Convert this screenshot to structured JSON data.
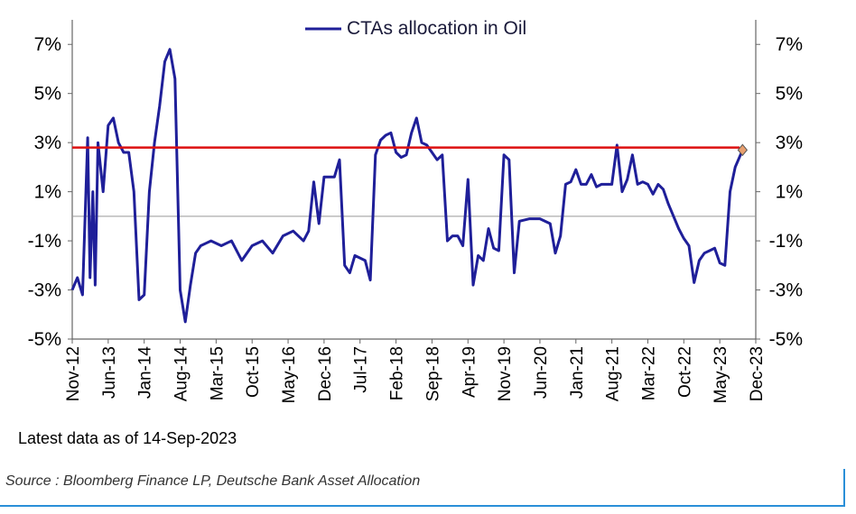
{
  "chart_data": {
    "type": "line",
    "legend": "CTAs allocation in Oil",
    "legend_position": "top-center",
    "y_ticks": [
      "7%",
      "5%",
      "3%",
      "1%",
      "-1%",
      "-3%",
      "-5%"
    ],
    "y_tick_values": [
      7,
      5,
      3,
      1,
      -1,
      -3,
      -5
    ],
    "ylim": [
      -5,
      8
    ],
    "x_ticks": [
      "Nov-12",
      "Jun-13",
      "Jan-14",
      "Aug-14",
      "Mar-15",
      "Oct-15",
      "May-16",
      "Dec-16",
      "Jul-17",
      "Feb-18",
      "Sep-18",
      "Apr-19",
      "Nov-19",
      "Jun-20",
      "Jan-21",
      "Aug-21",
      "Mar-22",
      "Oct-22",
      "May-23",
      "Dec-23"
    ],
    "xlim": [
      "2012-11",
      "2023-12"
    ],
    "grid": false,
    "zero_line": true,
    "series": [
      {
        "name": "CTAs allocation in Oil",
        "color": "#1f1f99",
        "points": [
          [
            "2012-11-01",
            -3.0
          ],
          [
            "2012-12-01",
            -2.5
          ],
          [
            "2013-01-01",
            -3.2
          ],
          [
            "2013-02-01",
            3.2
          ],
          [
            "2013-02-15",
            -2.5
          ],
          [
            "2013-03-01",
            1.0
          ],
          [
            "2013-03-15",
            -2.8
          ],
          [
            "2013-04-01",
            3.0
          ],
          [
            "2013-05-01",
            1.0
          ],
          [
            "2013-06-01",
            3.7
          ],
          [
            "2013-07-01",
            4.0
          ],
          [
            "2013-08-01",
            3.0
          ],
          [
            "2013-09-01",
            2.6
          ],
          [
            "2013-10-01",
            2.6
          ],
          [
            "2013-11-01",
            1.0
          ],
          [
            "2013-12-01",
            -3.4
          ],
          [
            "2014-01-01",
            -3.2
          ],
          [
            "2014-02-01",
            1.0
          ],
          [
            "2014-03-01",
            3.0
          ],
          [
            "2014-04-01",
            4.5
          ],
          [
            "2014-05-01",
            6.3
          ],
          [
            "2014-06-01",
            6.8
          ],
          [
            "2014-07-01",
            5.6
          ],
          [
            "2014-08-01",
            -3.0
          ],
          [
            "2014-09-01",
            -4.3
          ],
          [
            "2014-10-01",
            -2.8
          ],
          [
            "2014-11-01",
            -1.5
          ],
          [
            "2014-12-01",
            -1.2
          ],
          [
            "2015-01-01",
            -1.1
          ],
          [
            "2015-02-01",
            -1.0
          ],
          [
            "2015-04-01",
            -1.2
          ],
          [
            "2015-06-01",
            -1.0
          ],
          [
            "2015-08-01",
            -1.8
          ],
          [
            "2015-10-01",
            -1.2
          ],
          [
            "2015-12-01",
            -1.0
          ],
          [
            "2016-02-01",
            -1.5
          ],
          [
            "2016-04-01",
            -0.8
          ],
          [
            "2016-06-01",
            -0.6
          ],
          [
            "2016-08-01",
            -1.0
          ],
          [
            "2016-09-01",
            -0.6
          ],
          [
            "2016-10-01",
            1.4
          ],
          [
            "2016-11-01",
            -0.3
          ],
          [
            "2016-12-01",
            1.6
          ],
          [
            "2017-02-01",
            1.6
          ],
          [
            "2017-03-01",
            2.3
          ],
          [
            "2017-04-01",
            -2.0
          ],
          [
            "2017-05-01",
            -2.3
          ],
          [
            "2017-06-01",
            -1.6
          ],
          [
            "2017-07-01",
            -1.7
          ],
          [
            "2017-08-01",
            -1.8
          ],
          [
            "2017-09-01",
            -2.6
          ],
          [
            "2017-10-01",
            2.5
          ],
          [
            "2017-11-01",
            3.1
          ],
          [
            "2017-12-01",
            3.3
          ],
          [
            "2018-01-01",
            3.4
          ],
          [
            "2018-02-01",
            2.6
          ],
          [
            "2018-03-01",
            2.4
          ],
          [
            "2018-04-01",
            2.5
          ],
          [
            "2018-05-01",
            3.4
          ],
          [
            "2018-06-01",
            4.0
          ],
          [
            "2018-07-01",
            3.0
          ],
          [
            "2018-08-01",
            2.9
          ],
          [
            "2018-09-01",
            2.6
          ],
          [
            "2018-10-01",
            2.3
          ],
          [
            "2018-11-01",
            2.5
          ],
          [
            "2018-12-01",
            -1.0
          ],
          [
            "2019-01-01",
            -0.8
          ],
          [
            "2019-02-01",
            -0.8
          ],
          [
            "2019-03-01",
            -1.2
          ],
          [
            "2019-04-01",
            1.5
          ],
          [
            "2019-05-01",
            -2.8
          ],
          [
            "2019-06-01",
            -1.6
          ],
          [
            "2019-07-01",
            -1.8
          ],
          [
            "2019-08-01",
            -0.5
          ],
          [
            "2019-09-01",
            -1.3
          ],
          [
            "2019-10-01",
            -1.4
          ],
          [
            "2019-11-01",
            2.5
          ],
          [
            "2019-12-01",
            2.3
          ],
          [
            "2020-01-01",
            -2.3
          ],
          [
            "2020-02-01",
            -0.2
          ],
          [
            "2020-04-01",
            -0.1
          ],
          [
            "2020-06-01",
            -0.1
          ],
          [
            "2020-08-01",
            -0.3
          ],
          [
            "2020-09-01",
            -1.5
          ],
          [
            "2020-10-01",
            -0.8
          ],
          [
            "2020-11-01",
            1.3
          ],
          [
            "2020-12-01",
            1.4
          ],
          [
            "2021-01-01",
            1.9
          ],
          [
            "2021-02-01",
            1.3
          ],
          [
            "2021-03-01",
            1.3
          ],
          [
            "2021-04-01",
            1.7
          ],
          [
            "2021-05-01",
            1.2
          ],
          [
            "2021-06-01",
            1.3
          ],
          [
            "2021-07-01",
            1.3
          ],
          [
            "2021-08-01",
            1.3
          ],
          [
            "2021-09-01",
            2.9
          ],
          [
            "2021-10-01",
            1.0
          ],
          [
            "2021-11-01",
            1.5
          ],
          [
            "2021-12-01",
            2.5
          ],
          [
            "2022-01-01",
            1.3
          ],
          [
            "2022-02-01",
            1.4
          ],
          [
            "2022-03-01",
            1.3
          ],
          [
            "2022-04-01",
            0.9
          ],
          [
            "2022-05-01",
            1.3
          ],
          [
            "2022-06-01",
            1.1
          ],
          [
            "2022-07-01",
            0.5
          ],
          [
            "2022-08-01",
            0.0
          ],
          [
            "2022-09-01",
            -0.5
          ],
          [
            "2022-10-01",
            -0.9
          ],
          [
            "2022-11-01",
            -1.2
          ],
          [
            "2022-12-01",
            -2.7
          ],
          [
            "2023-01-01",
            -1.8
          ],
          [
            "2023-02-01",
            -1.5
          ],
          [
            "2023-03-01",
            -1.4
          ],
          [
            "2023-04-01",
            -1.3
          ],
          [
            "2023-05-01",
            -1.9
          ],
          [
            "2023-06-01",
            -2.0
          ],
          [
            "2023-07-01",
            1.0
          ],
          [
            "2023-08-01",
            2.0
          ],
          [
            "2023-09-14",
            2.7
          ]
        ]
      }
    ],
    "reference_line": {
      "value": 2.8,
      "color": "#dd1111"
    },
    "last_point_marker": {
      "date": "2023-09-14",
      "value": 2.7,
      "color": "#e8a070"
    }
  },
  "note": "Latest data as of 14-Sep-2023",
  "source": "Source : Bloomberg Finance LP, Deutsche Bank Asset Allocation"
}
